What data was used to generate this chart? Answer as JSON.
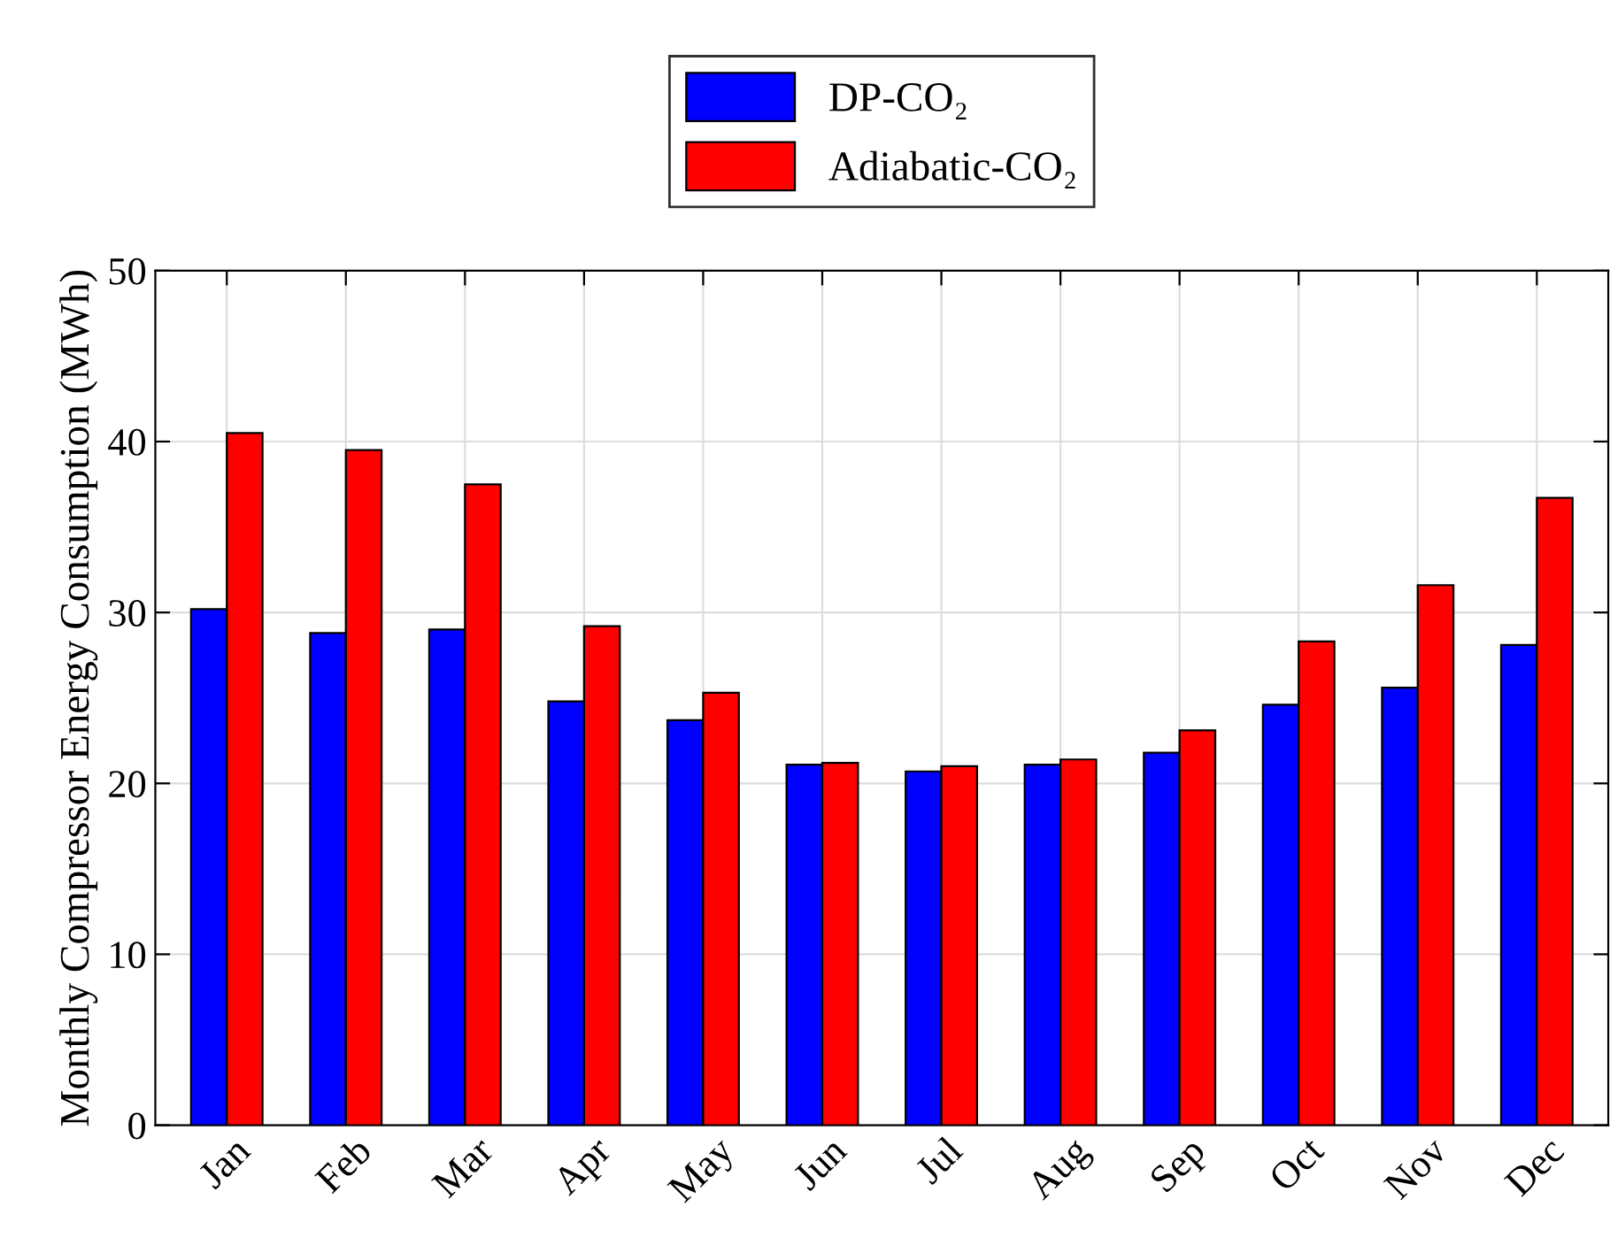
{
  "chart_data": {
    "type": "bar",
    "ylabel": "Monthly Compressor Energy Consumption (MWh)",
    "categories": [
      "Jan",
      "Feb",
      "Mar",
      "Apr",
      "May",
      "Jun",
      "Jul",
      "Aug",
      "Sep",
      "Oct",
      "Nov",
      "Dec"
    ],
    "series": [
      {
        "name": "DP-CO₂",
        "color": "#0000ff",
        "values": [
          30.2,
          28.8,
          29.0,
          24.8,
          23.7,
          21.1,
          20.7,
          21.1,
          21.8,
          24.6,
          25.6,
          28.1
        ]
      },
      {
        "name": "Adiabatic-CO₂",
        "color": "#ff0000",
        "values": [
          40.5,
          39.5,
          37.5,
          29.2,
          25.3,
          21.2,
          21.0,
          21.4,
          23.1,
          28.3,
          31.6,
          36.7
        ]
      }
    ],
    "ylim": [
      0,
      50
    ],
    "yticks": [
      0,
      10,
      20,
      30,
      40,
      50
    ],
    "grid": true,
    "legend": "top"
  }
}
